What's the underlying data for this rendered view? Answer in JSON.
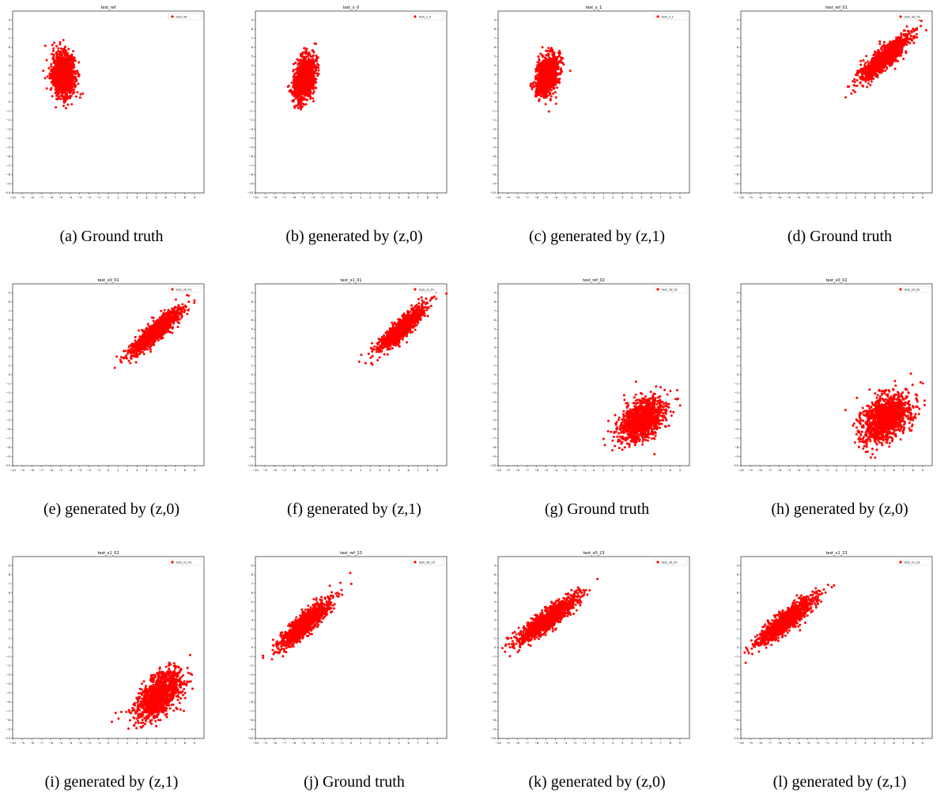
{
  "colors": {
    "points": "#ff0000",
    "axis": "#000000",
    "background": "#ffffff"
  },
  "ticks": [
    "−10",
    "−9",
    "−8",
    "−7",
    "−6",
    "−5",
    "−4",
    "−3",
    "−2",
    "−1",
    "0",
    "1",
    "2",
    "3",
    "4",
    "5",
    "6",
    "7",
    "8",
    "9"
  ],
  "chart_data": [
    {
      "type": "scatter",
      "title": "test_ref",
      "legend": "test_ref",
      "legend_loc": "top-right",
      "caption": "(a) Ground truth",
      "xlim": [
        -10,
        10
      ],
      "ylim": [
        -10,
        10
      ],
      "grid": false,
      "cluster": {
        "mean": [
          -4.7,
          3.0
        ],
        "std": [
          0.6,
          1.2
        ],
        "corr": 0.0,
        "count": 1200
      }
    },
    {
      "type": "scatter",
      "title": "test_x_0",
      "legend": "test_x_0",
      "legend_loc": "top-right",
      "caption": "(b) generated by (z,0)",
      "xlim": [
        -10,
        10
      ],
      "ylim": [
        -10,
        10
      ],
      "grid": false,
      "cluster": {
        "mean": [
          -4.9,
          2.6
        ],
        "std": [
          0.55,
          1.2
        ],
        "corr": 0.35,
        "count": 1200
      }
    },
    {
      "type": "scatter",
      "title": "test_x_1",
      "legend": "test_x_1",
      "legend_loc": "top-right",
      "caption": "(c) generated by (z,1)",
      "xlim": [
        -10,
        10
      ],
      "ylim": [
        -10,
        10
      ],
      "grid": false,
      "cluster": {
        "mean": [
          -4.9,
          2.9
        ],
        "std": [
          0.55,
          1.05
        ],
        "corr": 0.25,
        "count": 1200
      }
    },
    {
      "type": "scatter",
      "title": "test_ref_01",
      "legend": "test_ref_01",
      "legend_loc": "top-right",
      "caption": "(d) Ground truth",
      "xlim": [
        -10,
        10
      ],
      "ylim": [
        -10,
        10
      ],
      "grid": false,
      "cluster": {
        "mean": [
          5.0,
          4.8
        ],
        "std": [
          1.3,
          1.25
        ],
        "corr": 0.88,
        "count": 1200
      }
    },
    {
      "type": "scatter",
      "title": "test_x0_01",
      "legend": "test_x0_01",
      "legend_loc": "top-right",
      "caption": "(e) generated by (z,0)",
      "xlim": [
        -10,
        10
      ],
      "ylim": [
        -10,
        10
      ],
      "grid": false,
      "cluster": {
        "mean": [
          5.0,
          4.8
        ],
        "std": [
          1.3,
          1.25
        ],
        "corr": 0.9,
        "count": 1200
      }
    },
    {
      "type": "scatter",
      "title": "test_x1_01",
      "legend": "test_x1_01",
      "legend_loc": "top-right",
      "caption": "(f) generated by (z,1)",
      "xlim": [
        -10,
        10
      ],
      "ylim": [
        -10,
        10
      ],
      "grid": false,
      "cluster": {
        "mean": [
          5.3,
          5.1
        ],
        "std": [
          1.2,
          1.2
        ],
        "corr": 0.9,
        "count": 1200
      }
    },
    {
      "type": "scatter",
      "title": "test_ref_02",
      "legend": "test_ref_02",
      "legend_loc": "top-right",
      "caption": "(g) Ground truth",
      "xlim": [
        -10,
        10
      ],
      "ylim": [
        -10,
        10
      ],
      "grid": false,
      "cluster": {
        "mean": [
          5.0,
          -5.0
        ],
        "std": [
          1.2,
          1.2
        ],
        "corr": 0.4,
        "count": 1200
      }
    },
    {
      "type": "scatter",
      "title": "test_x0_02",
      "legend": "test_x0_02",
      "legend_loc": "top-right",
      "caption": "(h) generated by (z,0)",
      "xlim": [
        -10,
        10
      ],
      "ylim": [
        -10,
        10
      ],
      "grid": false,
      "cluster": {
        "mean": [
          5.2,
          -4.8
        ],
        "std": [
          1.35,
          1.4
        ],
        "corr": 0.45,
        "count": 1200
      }
    },
    {
      "type": "scatter",
      "title": "test_x1_02",
      "legend": "test_x1_02",
      "legend_loc": "top-right",
      "caption": "(i) generated by (z,1)",
      "xlim": [
        -10,
        10
      ],
      "ylim": [
        -10,
        10
      ],
      "grid": false,
      "cluster": {
        "mean": [
          5.3,
          -5.2
        ],
        "std": [
          1.2,
          1.3
        ],
        "corr": 0.55,
        "count": 1200
      }
    },
    {
      "type": "scatter",
      "title": "test_ref_23",
      "legend": "test_ref_23",
      "legend_loc": "top-right",
      "caption": "(j) Ground truth",
      "xlim": [
        -10,
        10
      ],
      "ylim": [
        -10,
        10
      ],
      "grid": false,
      "cluster": {
        "mean": [
          -4.8,
          2.6
        ],
        "std": [
          1.3,
          1.3
        ],
        "corr": 0.88,
        "count": 1200
      }
    },
    {
      "type": "scatter",
      "title": "test_x0_23",
      "legend": "test_x0_23",
      "legend_loc": "top-right",
      "caption": "(k) generated by (z,0)",
      "xlim": [
        -10,
        10
      ],
      "ylim": [
        -10,
        10
      ],
      "grid": false,
      "cluster": {
        "mean": [
          -5.0,
          3.0
        ],
        "std": [
          1.6,
          1.3
        ],
        "corr": 0.9,
        "count": 1200
      }
    },
    {
      "type": "scatter",
      "title": "test_x1_23",
      "legend": "test_x1_23",
      "legend_loc": "top-right",
      "caption": "(l) generated by (z,1)",
      "xlim": [
        -10,
        10
      ],
      "ylim": [
        -10,
        10
      ],
      "grid": false,
      "cluster": {
        "mean": [
          -5.2,
          3.0
        ],
        "std": [
          1.5,
          1.3
        ],
        "corr": 0.9,
        "count": 1200
      }
    }
  ]
}
